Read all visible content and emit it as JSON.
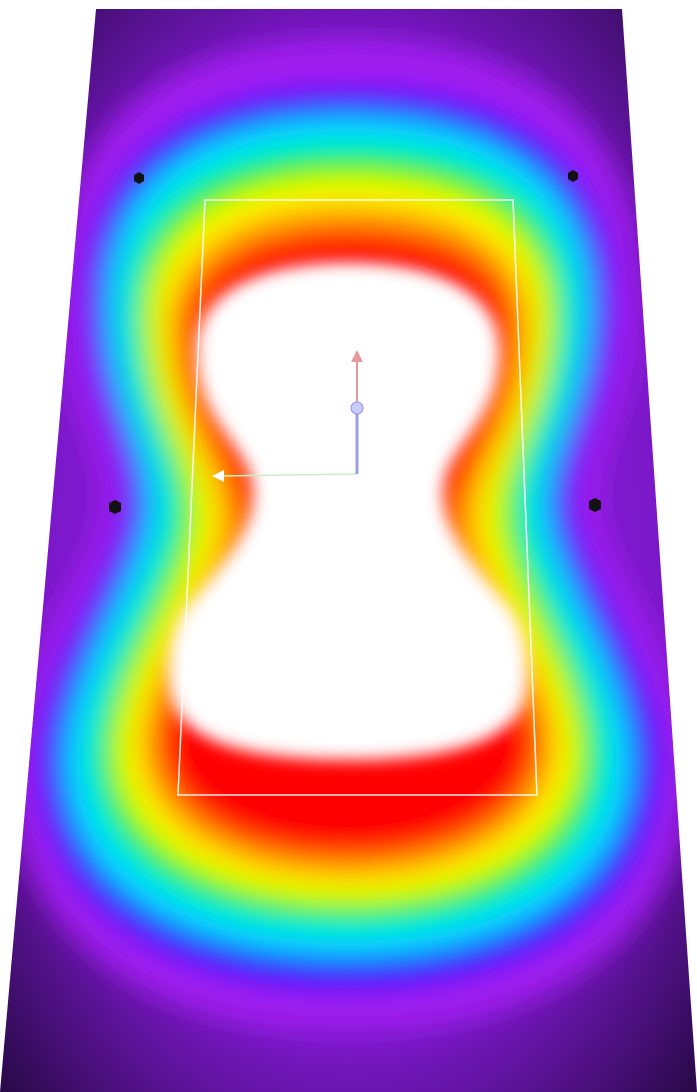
{
  "viewport": {
    "background": "#ffffff"
  },
  "heatmap": {
    "description_colors": [
      "#ffffff",
      "#ff0000",
      "#ffa500",
      "#ffff00",
      "#00ff00",
      "#00ffff",
      "#0000ff",
      "#a000ff",
      "#2a0a4a"
    ],
    "edge_color": "#2a0a4a"
  },
  "selection_box": {
    "stroke": "#ffffff"
  },
  "gizmo": {
    "up_arrow_color": "#e89a9a",
    "left_arrow_color": "#ffffff",
    "shaft_color": "#9aa0e0",
    "center_handle_color": "#c8cbff",
    "left_shaft_color": "#c7f0c7"
  },
  "markers": {
    "color": "#111111",
    "icon": "hexagon-marker-icon"
  }
}
